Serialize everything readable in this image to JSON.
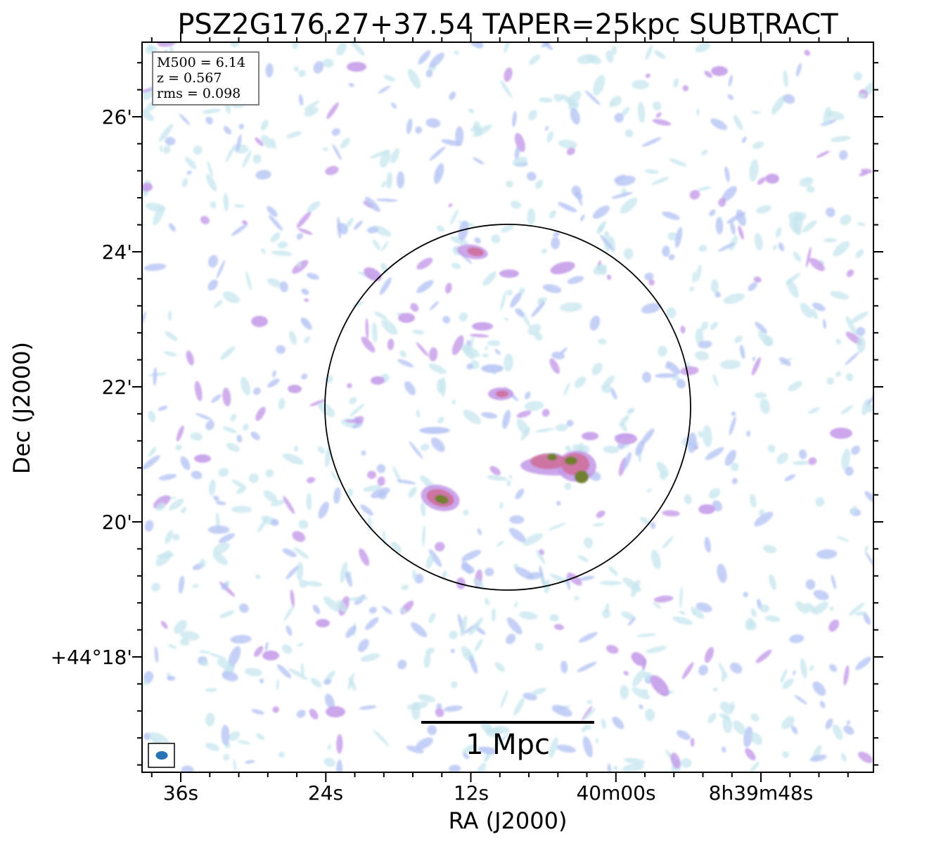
{
  "figure": {
    "title": "PSZ2G176.27+37.54 TAPER=25kpc SUBTRACT",
    "xlabel": "RA (J2000)",
    "ylabel": "Dec (J2000)"
  },
  "x_ticks": [
    "36s",
    "24s",
    "12s",
    "40m00s",
    "8h39m48s"
  ],
  "y_ticks": [
    "26'",
    "24'",
    "22'",
    "20'",
    "+44°18'"
  ],
  "info_box": {
    "line1": "M500 = 6.14",
    "line2": "z = 0.567",
    "line3": "rms = 0.098"
  },
  "scale_bar": {
    "label": "1 Mpc"
  },
  "colors": {
    "noise_faint": "#c6e6ee",
    "noise_mid": "#b5c4f4",
    "purple": "#c49ae8",
    "pink": "#cf6f9a",
    "olive": "#6e7e28",
    "beam": "#2873b4"
  }
}
